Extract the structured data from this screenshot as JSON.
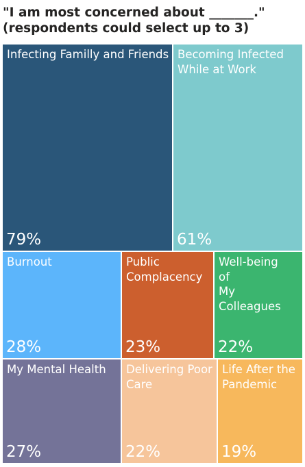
{
  "title": {
    "line1": "\"I am most concerned about _______.\"",
    "line2": "(respondents could select up to 3)"
  },
  "chart_data": {
    "type": "treemap",
    "items": [
      {
        "label": "Infecting Familly and Friends",
        "value": 79,
        "display": "79%",
        "color": "#2a5679",
        "text_color": "#ffffff"
      },
      {
        "label": "Becoming Infected\nWhile at Work",
        "value": 61,
        "display": "61%",
        "color": "#7ecacd",
        "text_color": "#ffffff"
      },
      {
        "label": "Burnout",
        "value": 28,
        "display": "28%",
        "color": "#5cb5fb",
        "text_color": "#ffffff"
      },
      {
        "label": "Public\nComplacency",
        "value": 23,
        "display": "23%",
        "color": "#cc5f2e",
        "text_color": "#ffffff"
      },
      {
        "label": "Well-being\nof\nMy Colleagues",
        "value": 22,
        "display": "22%",
        "color": "#3bb56f",
        "text_color": "#ffffff"
      },
      {
        "label": "My Mental Health",
        "value": 27,
        "display": "27%",
        "color": "#747398",
        "text_color": "#ffffff"
      },
      {
        "label": "Delivering Poor\nCare",
        "value": 22,
        "display": "22%",
        "color": "#f6c59b",
        "text_color": "#ffffff"
      },
      {
        "label": "Life After the\nPandemic",
        "value": 19,
        "display": "19%",
        "color": "#f7b85c",
        "text_color": "#ffffff"
      }
    ]
  }
}
